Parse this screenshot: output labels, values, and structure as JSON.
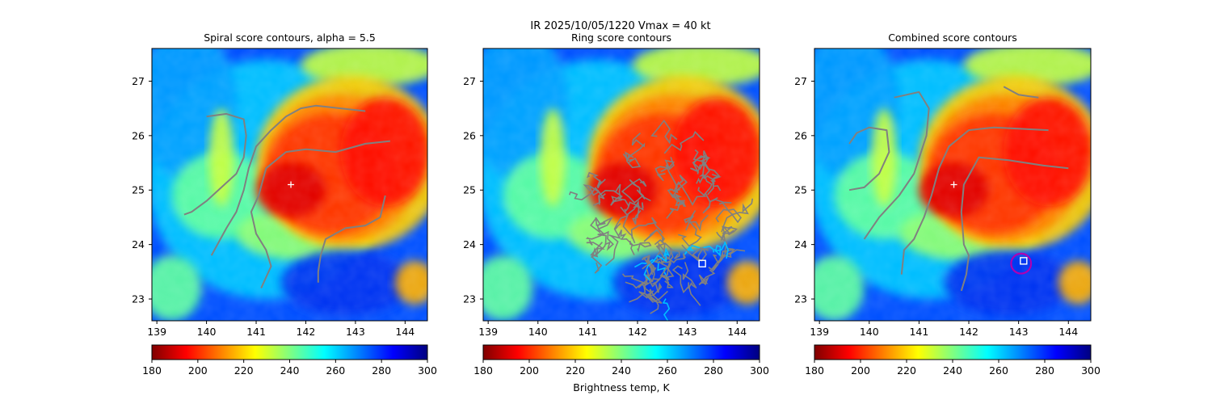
{
  "suptitle": {
    "line1": "IR  2025/10/05/1220    Vmax = 40 kt"
  },
  "colorbar": {
    "min": 180,
    "max": 300,
    "ticks": [
      "180",
      "200",
      "220",
      "240",
      "260",
      "280",
      "300"
    ],
    "label": "Brightness temp, K",
    "colormap": "jet_r",
    "colors": [
      "#800000",
      "#ff0000",
      "#ff8000",
      "#ffff00",
      "#80ff80",
      "#00ffff",
      "#0080ff",
      "#0000ff",
      "#000080"
    ]
  },
  "colors": {
    "contour": "#808080",
    "center_marker": "#ffffff",
    "ring_highlight": "#00bfff",
    "best_circle": "#b000b0"
  },
  "chart_data": [
    {
      "type": "heatmap",
      "title": "Spiral score contours, alpha =  5.5",
      "xlim": [
        138.9,
        144.45
      ],
      "ylim": [
        22.6,
        27.6
      ],
      "xticks": [
        "139",
        "140",
        "141",
        "142",
        "143",
        "144"
      ],
      "yticks": [
        "23",
        "24",
        "25",
        "26",
        "27"
      ],
      "center_marker": {
        "lon": 141.7,
        "lat": 25.1,
        "symbol": "+"
      },
      "contours": [
        [
          [
            140.0,
            26.35
          ],
          [
            140.4,
            26.4
          ],
          [
            140.75,
            26.3
          ],
          [
            140.8,
            26.0
          ],
          [
            140.75,
            25.6
          ],
          [
            140.6,
            25.3
          ],
          [
            140.3,
            25.05
          ],
          [
            140.0,
            24.8
          ],
          [
            139.7,
            24.6
          ],
          [
            139.55,
            24.55
          ]
        ],
        [
          [
            143.2,
            26.45
          ],
          [
            142.7,
            26.5
          ],
          [
            142.2,
            26.55
          ],
          [
            141.9,
            26.5
          ],
          [
            141.6,
            26.35
          ],
          [
            141.3,
            26.1
          ],
          [
            141.0,
            25.8
          ],
          [
            140.85,
            25.4
          ],
          [
            140.75,
            25.0
          ],
          [
            140.6,
            24.6
          ],
          [
            140.4,
            24.3
          ],
          [
            140.1,
            23.8
          ]
        ],
        [
          [
            143.7,
            25.9
          ],
          [
            143.2,
            25.85
          ],
          [
            142.6,
            25.7
          ],
          [
            142.0,
            25.75
          ],
          [
            141.6,
            25.7
          ],
          [
            141.2,
            25.4
          ],
          [
            141.05,
            24.9
          ],
          [
            140.9,
            24.6
          ],
          [
            141.0,
            24.2
          ],
          [
            141.2,
            23.9
          ],
          [
            141.3,
            23.6
          ],
          [
            141.1,
            23.2
          ]
        ],
        [
          [
            143.6,
            24.9
          ],
          [
            143.5,
            24.5
          ],
          [
            143.2,
            24.35
          ],
          [
            142.8,
            24.3
          ],
          [
            142.4,
            24.1
          ],
          [
            142.3,
            23.8
          ],
          [
            142.25,
            23.5
          ],
          [
            142.25,
            23.3
          ]
        ]
      ],
      "colorbar_label": ""
    },
    {
      "type": "heatmap",
      "title": "Ring score contours",
      "xlim": [
        138.9,
        144.45
      ],
      "ylim": [
        22.6,
        27.6
      ],
      "xticks": [
        "139",
        "140",
        "141",
        "142",
        "143",
        "144"
      ],
      "yticks": [
        "23",
        "24",
        "25",
        "26",
        "27"
      ],
      "best_point": {
        "lon": 143.3,
        "lat": 23.65,
        "symbol": "square"
      },
      "contour_region": {
        "description": "dense ring-score contours",
        "lon_range": [
          140.9,
          144.0
        ],
        "lat_range": [
          23.0,
          26.0
        ]
      },
      "colorbar_label": "Brightness temp, K"
    },
    {
      "type": "heatmap",
      "title": "Combined score contours",
      "xlim": [
        138.9,
        144.45
      ],
      "ylim": [
        22.6,
        27.6
      ],
      "xticks": [
        "139",
        "140",
        "141",
        "142",
        "143",
        "144"
      ],
      "yticks": [
        "23",
        "24",
        "25",
        "26",
        "27"
      ],
      "center_marker": {
        "lon": 141.7,
        "lat": 25.1,
        "symbol": "+"
      },
      "best_point": {
        "lon": 143.1,
        "lat": 23.7,
        "symbol": "square"
      },
      "best_circle": {
        "lon": 143.05,
        "lat": 23.65,
        "radius_deg": 0.2
      },
      "contours": [
        [
          [
            139.6,
            25.85
          ],
          [
            139.75,
            26.05
          ],
          [
            140.0,
            26.15
          ],
          [
            140.35,
            26.1
          ],
          [
            140.4,
            25.7
          ],
          [
            140.2,
            25.3
          ],
          [
            139.9,
            25.05
          ],
          [
            139.6,
            25.0
          ]
        ],
        [
          [
            140.5,
            26.7
          ],
          [
            141.0,
            26.8
          ],
          [
            141.2,
            26.5
          ],
          [
            141.15,
            26.0
          ],
          [
            140.9,
            25.3
          ],
          [
            140.6,
            24.9
          ],
          [
            140.2,
            24.5
          ],
          [
            139.9,
            24.1
          ]
        ],
        [
          [
            142.7,
            26.9
          ],
          [
            143.0,
            26.75
          ],
          [
            143.4,
            26.7
          ]
        ],
        [
          [
            143.6,
            26.1
          ],
          [
            142.5,
            26.15
          ],
          [
            142.0,
            26.1
          ],
          [
            141.6,
            25.8
          ],
          [
            141.4,
            25.4
          ],
          [
            141.25,
            24.9
          ],
          [
            141.1,
            24.5
          ],
          [
            140.9,
            24.1
          ],
          [
            140.7,
            23.9
          ],
          [
            140.65,
            23.45
          ]
        ],
        [
          [
            144.0,
            25.4
          ],
          [
            143.5,
            25.45
          ],
          [
            142.8,
            25.55
          ],
          [
            142.2,
            25.6
          ],
          [
            141.9,
            25.1
          ],
          [
            141.85,
            24.6
          ],
          [
            141.9,
            24.0
          ],
          [
            142.0,
            23.8
          ],
          [
            141.95,
            23.45
          ],
          [
            141.85,
            23.15
          ]
        ]
      ],
      "colorbar_label": ""
    }
  ]
}
